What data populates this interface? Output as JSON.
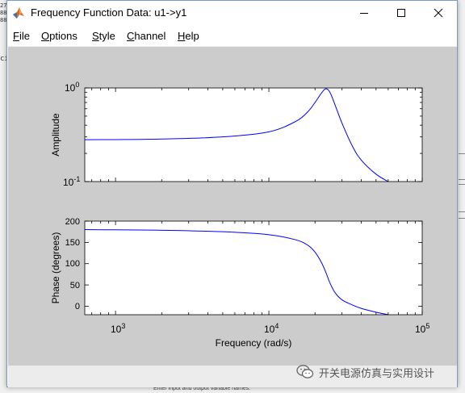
{
  "window": {
    "title": "Frequency Function Data: u1->y1"
  },
  "menu": [
    {
      "key": "F",
      "rest": "ile"
    },
    {
      "key": "O",
      "rest": "ptions"
    },
    {
      "key": "S",
      "rest": "tyle"
    },
    {
      "key": "C",
      "rest": "hannel"
    },
    {
      "key": "H",
      "rest": "elp"
    }
  ],
  "background": {
    "left_snippets": [
      "27",
      "88",
      "88",
      "cil"
    ],
    "bottom_text": "Enter input and output variable names."
  },
  "watermark": {
    "text": "开关电源仿真与实用设计"
  },
  "colors": {
    "figure_bg": "#cccccc",
    "axes_bg": "#ffffff",
    "line": "#0000ff"
  },
  "chart_data": [
    {
      "type": "line",
      "ylabel": "Amplitude",
      "yscale": "log",
      "xscale": "log",
      "xlim": [
        630,
        100000
      ],
      "ylim": [
        0.1,
        1
      ],
      "yticks": [
        {
          "base": "10",
          "exp": "0",
          "value": 1
        },
        {
          "base": "10",
          "exp": "-1",
          "value": 0.1
        }
      ],
      "series": [
        {
          "x": [
            630,
            1000,
            2000,
            5000,
            10000,
            15000,
            18000,
            20000,
            22000,
            23500,
            25000,
            27000,
            30000,
            35000,
            40000,
            50000,
            60000
          ],
          "y": [
            0.28,
            0.281,
            0.285,
            0.3,
            0.34,
            0.44,
            0.56,
            0.7,
            0.88,
            0.98,
            0.9,
            0.66,
            0.42,
            0.24,
            0.17,
            0.12,
            0.1
          ]
        }
      ]
    },
    {
      "type": "line",
      "ylabel": "Phase (degrees)",
      "xlabel": "Frequency (rad/s)",
      "xscale": "log",
      "xlim": [
        630,
        100000
      ],
      "ylim": [
        -20,
        200
      ],
      "yticks": [
        0,
        50,
        100,
        150,
        200
      ],
      "xticks": [
        {
          "base": "10",
          "exp": "3",
          "value": 1000
        },
        {
          "base": "10",
          "exp": "4",
          "value": 10000
        },
        {
          "base": "10",
          "exp": "5",
          "value": 100000
        }
      ],
      "series": [
        {
          "x": [
            630,
            1000,
            2000,
            5000,
            10000,
            15000,
            18000,
            20000,
            22000,
            23500,
            25000,
            27000,
            30000,
            35000,
            40000,
            50000,
            60000
          ],
          "y": [
            180,
            179.5,
            178.5,
            175,
            168,
            156,
            143,
            127,
            103,
            80,
            55,
            32,
            15,
            3,
            -5,
            -14,
            -20
          ]
        }
      ]
    }
  ]
}
